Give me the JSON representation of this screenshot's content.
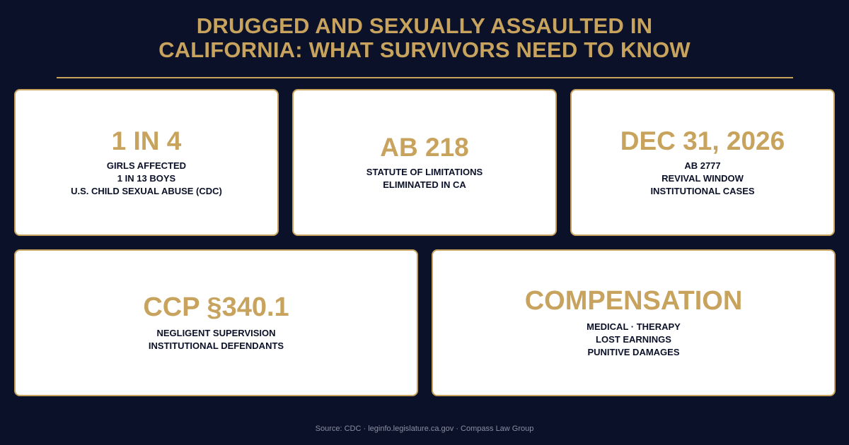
{
  "title": {
    "line1": "DRUGGED AND SEXUALLY ASSAULTED IN",
    "line2": "CALIFORNIA: WHAT SURVIVORS NEED TO KNOW"
  },
  "cards": [
    {
      "stat": "1 IN 4",
      "lines": [
        "GIRLS AFFECTED",
        "1 IN 13 BOYS",
        "U.S. CHILD SEXUAL ABUSE (CDC)"
      ]
    },
    {
      "stat": "AB 218",
      "lines": [
        "STATUTE OF LIMITATIONS",
        "ELIMINATED IN CA"
      ]
    },
    {
      "stat": "DEC 31, 2026",
      "lines": [
        "AB 2777",
        "REVIVAL WINDOW",
        "INSTITUTIONAL CASES"
      ]
    },
    {
      "stat": "CCP §340.1",
      "lines": [
        "NEGLIGENT SUPERVISION",
        "INSTITUTIONAL DEFENDANTS"
      ]
    },
    {
      "stat": "COMPENSATION",
      "lines": [
        "MEDICAL · THERAPY",
        "LOST EARNINGS",
        "PUNITIVE DAMAGES"
      ]
    }
  ],
  "source": "Source: CDC · leginfo.legislature.ca.gov · Compass Law Group",
  "colors": {
    "background": "#0b1128",
    "accent": "#c7a35e",
    "card": "#ffffff",
    "text": "#0b1128"
  }
}
